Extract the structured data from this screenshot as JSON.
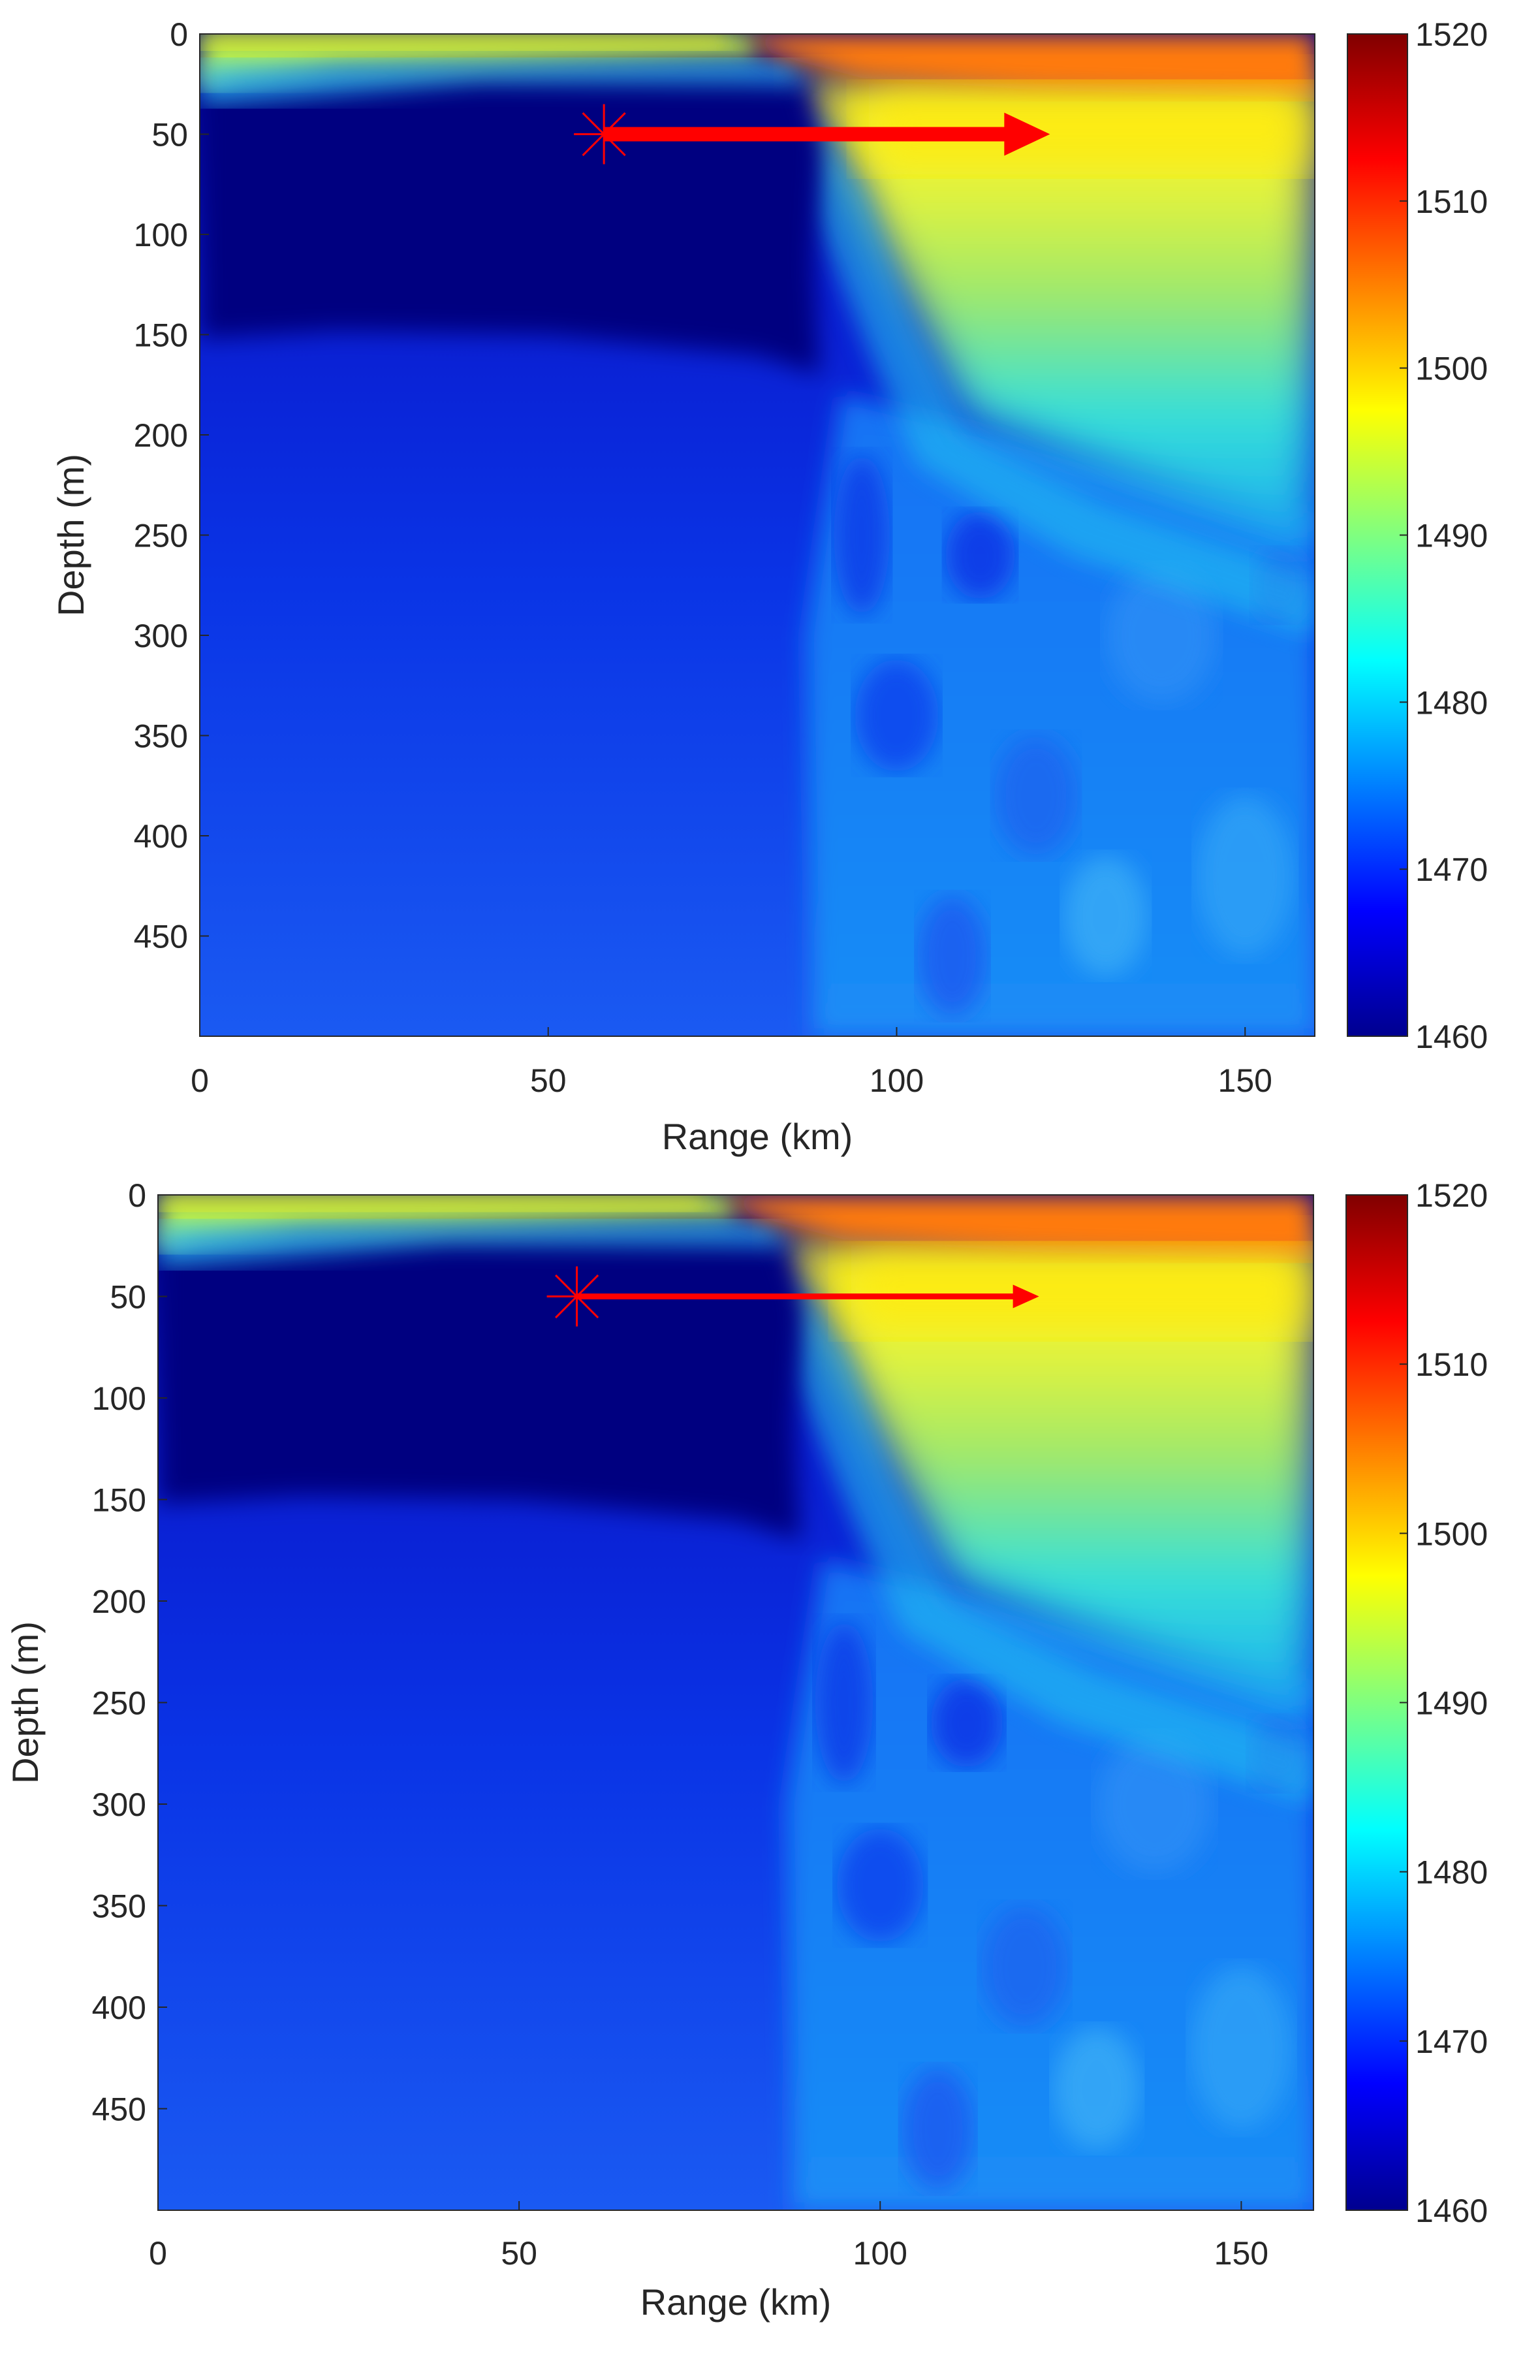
{
  "chart_data": [
    {
      "type": "heatmap",
      "title": "",
      "xlabel": "Range (km)",
      "ylabel": "Depth (m)",
      "xlim": [
        0,
        160
      ],
      "ylim": [
        500,
        0
      ],
      "y_reversed": true,
      "x_ticks": [
        0,
        50,
        100,
        150
      ],
      "y_ticks": [
        0,
        50,
        100,
        150,
        200,
        250,
        300,
        350,
        400,
        450
      ],
      "colorbar": {
        "min": 1460,
        "max": 1520,
        "ticks": [
          1460,
          1470,
          1480,
          1490,
          1500,
          1510,
          1520
        ],
        "colormap": "jet"
      },
      "regions": [
        {
          "description": "surface layer west",
          "x": [
            0,
            80
          ],
          "depth": [
            0,
            25
          ],
          "value": 1493
        },
        {
          "description": "surface layer east",
          "x": [
            80,
            160
          ],
          "depth": [
            0,
            25
          ],
          "value": 1505
        },
        {
          "description": "deep cold core",
          "x": [
            0,
            88
          ],
          "depth": [
            25,
            150
          ],
          "value": 1461
        },
        {
          "description": "lower water column west",
          "x": [
            0,
            90
          ],
          "depth": [
            150,
            500
          ],
          "value": 1467
        },
        {
          "description": "warm wedge",
          "x": [
            95,
            160
          ],
          "depth": [
            25,
            250
          ],
          "value": 1490
        },
        {
          "description": "lower water column east",
          "x": [
            100,
            160
          ],
          "depth": [
            250,
            500
          ],
          "value": 1474
        }
      ],
      "marker": {
        "symbol": "asterisk",
        "x": 58,
        "depth": 50,
        "color": "#ff0000"
      },
      "arrow": {
        "x_start": 58,
        "x_end": 122,
        "depth": 50,
        "color": "#ff0000"
      }
    },
    {
      "type": "heatmap",
      "title": "",
      "xlabel": "Range (km)",
      "ylabel": "Depth (m)",
      "xlim": [
        0,
        160
      ],
      "ylim": [
        500,
        0
      ],
      "y_reversed": true,
      "x_ticks": [
        0,
        50,
        100,
        150
      ],
      "y_ticks": [
        0,
        50,
        100,
        150,
        200,
        250,
        300,
        350,
        400,
        450
      ],
      "colorbar": {
        "min": 1460,
        "max": 1520,
        "ticks": [
          1460,
          1470,
          1480,
          1490,
          1500,
          1510,
          1520
        ],
        "colormap": "jet"
      },
      "regions": [
        {
          "description": "surface layer west",
          "x": [
            0,
            80
          ],
          "depth": [
            0,
            25
          ],
          "value": 1493
        },
        {
          "description": "surface layer east",
          "x": [
            80,
            160
          ],
          "depth": [
            0,
            25
          ],
          "value": 1505
        },
        {
          "description": "deep cold core",
          "x": [
            0,
            88
          ],
          "depth": [
            25,
            150
          ],
          "value": 1461
        },
        {
          "description": "lower water column west",
          "x": [
            0,
            90
          ],
          "depth": [
            150,
            500
          ],
          "value": 1467
        },
        {
          "description": "warm wedge",
          "x": [
            95,
            160
          ],
          "depth": [
            25,
            250
          ],
          "value": 1490
        },
        {
          "description": "lower water column east",
          "x": [
            100,
            160
          ],
          "depth": [
            250,
            500
          ],
          "value": 1474
        }
      ],
      "marker": {
        "symbol": "asterisk",
        "x": 58,
        "depth": 50,
        "color": "#ff0000"
      },
      "arrow": {
        "x_start": 58,
        "x_end": 122,
        "depth": 50,
        "color": "#ff0000"
      }
    }
  ]
}
